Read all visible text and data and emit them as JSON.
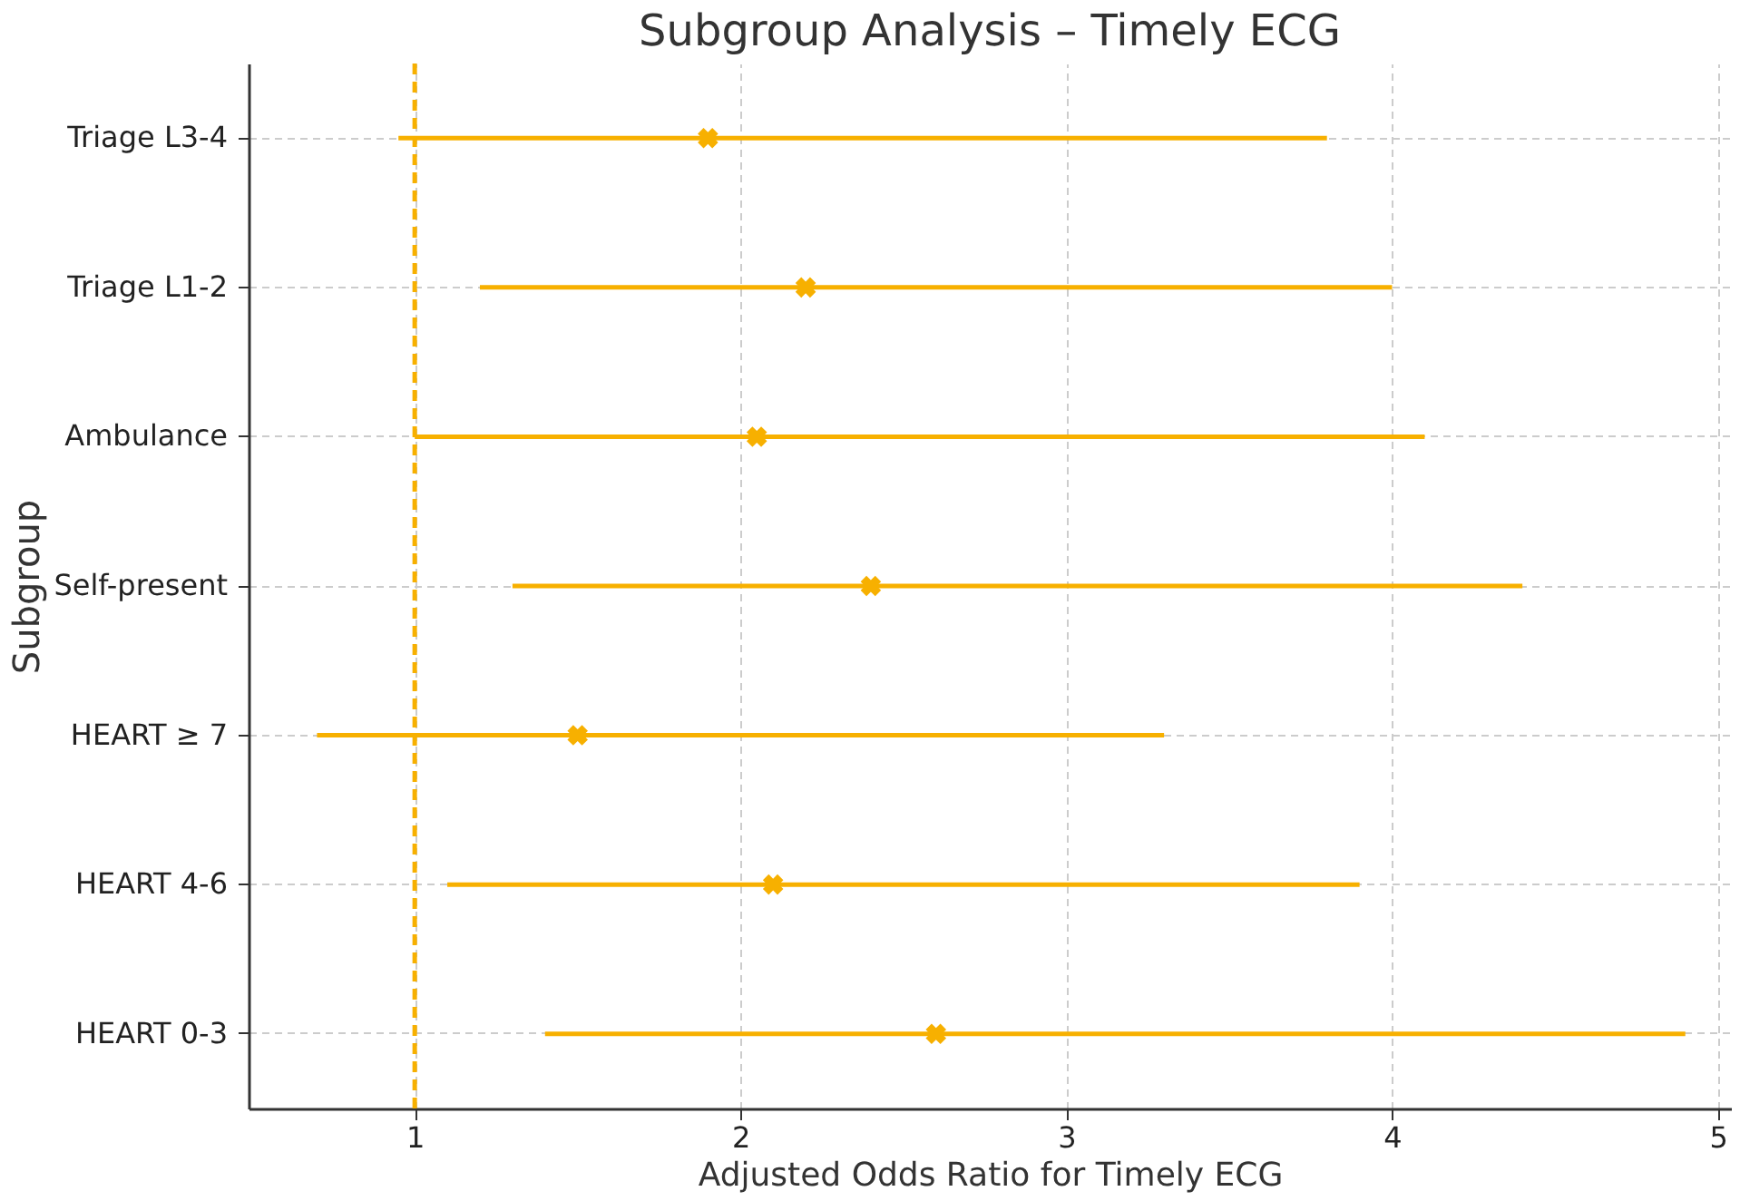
{
  "chart_data": {
    "type": "scatter",
    "orientation": "horizontal",
    "title": "Subgroup Analysis – Timely ECG",
    "xlabel": "Adjusted Odds Ratio for Timely ECG",
    "ylabel": "Subgroup",
    "categories": [
      "Triage L3-4",
      "Triage L1-2",
      "Ambulance",
      "Self-present",
      "HEART ≥ 7",
      "HEART 4-6",
      "HEART 0-3"
    ],
    "series": [
      {
        "color": "#f7b000",
        "values": [
          1.9,
          2.2,
          2.05,
          2.4,
          1.5,
          2.1,
          2.6
        ],
        "errors": [
          [
            0.95,
            3.8
          ],
          [
            1.2,
            4.0
          ],
          [
            1.0,
            4.1
          ],
          [
            1.3,
            4.4
          ],
          [
            0.7,
            3.3
          ],
          [
            1.1,
            3.9
          ],
          [
            1.4,
            4.9
          ]
        ]
      }
    ],
    "xlim": [
      0.49,
      5.04
    ],
    "xticks": [
      1,
      2,
      3,
      4,
      5
    ],
    "grid": true,
    "marker": "cross",
    "ref_lines": [
      {
        "axis": "x",
        "value": 1,
        "color": "#f7b000",
        "line_style": "dashed"
      }
    ]
  }
}
